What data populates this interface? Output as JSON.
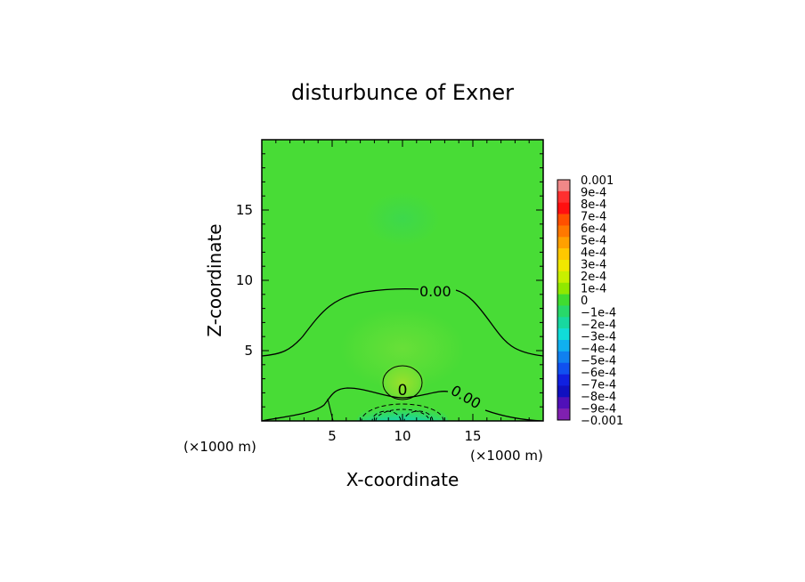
{
  "chart_data": {
    "type": "contour",
    "title": "disturbunce of Exner",
    "xlabel": "X-coordinate",
    "ylabel": "Z-coordinate",
    "x_unit": "(×1000 m)",
    "y_unit": "(×1000 m)",
    "xlim": [
      0,
      20
    ],
    "ylim": [
      0,
      20
    ],
    "x_ticks": [
      5,
      10,
      15
    ],
    "y_ticks": [
      5,
      10,
      15
    ],
    "contour_labels": [
      "0.00",
      "0.00",
      "0"
    ],
    "colorbar": {
      "levels": [
        "0.001",
        "9e-4",
        "8e-4",
        "7e-4",
        "6e-4",
        "5e-4",
        "4e-4",
        "3e-4",
        "2e-4",
        "1e-4",
        "0",
        "−1e-4",
        "−2e-4",
        "−3e-4",
        "−4e-4",
        "−5e-4",
        "−6e-4",
        "−7e-4",
        "−8e-4",
        "−9e-4",
        "−0.001"
      ],
      "colors": [
        "#f08888",
        "#ff3030",
        "#ff1010",
        "#ff5000",
        "#ff7800",
        "#ffa000",
        "#ffc800",
        "#f0e800",
        "#c8f000",
        "#90e800",
        "#40dc30",
        "#28d86a",
        "#18d8a0",
        "#10dcd8",
        "#10b0f0",
        "#1080f0",
        "#1050f0",
        "#1020e0",
        "#1010c0",
        "#5010b8",
        "#8020b0"
      ]
    },
    "field": {
      "background_color": "#48dc36",
      "features": [
        {
          "name": "positive-core",
          "x": 10,
          "z": 2.3,
          "value": 0.0001,
          "color": "#90e030"
        },
        {
          "name": "negative-surface-core",
          "x": 10,
          "z": 0.2,
          "value": -0.00035,
          "color": "#10dcd8"
        },
        {
          "name": "upper-weak-region",
          "x": 10,
          "z": 14,
          "value": -2e-05,
          "color": "#3cda44"
        }
      ]
    }
  }
}
